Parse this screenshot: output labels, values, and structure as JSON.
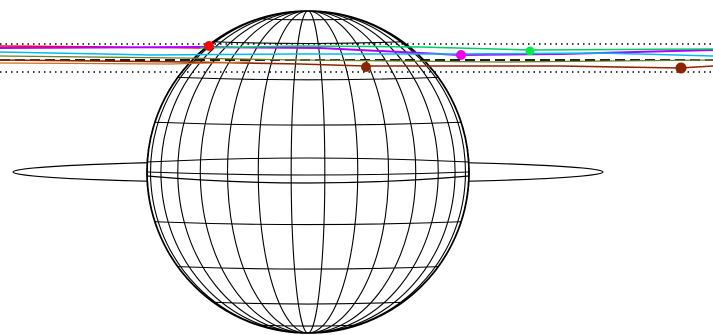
{
  "diagram": {
    "globe": {
      "meridian_count": 15,
      "parallel_count": 9
    },
    "reference_lines": [
      {
        "style": "dotted",
        "color": "#000000"
      },
      {
        "style": "dashed",
        "color": "#000000"
      },
      {
        "style": "dotted",
        "color": "#000000"
      }
    ],
    "orbits": [
      {
        "color": "#ff0000",
        "marker_color": "#ff0000"
      },
      {
        "color": "#b000ff",
        "marker_color": "#ee00ee"
      },
      {
        "color": "#00cc66",
        "marker_color": "#00ee44"
      },
      {
        "color": "#00bbee",
        "marker_color": null
      },
      {
        "color": "#8b2500",
        "marker_color": "#8b2500"
      }
    ],
    "ring": {
      "color": "#000000"
    }
  }
}
